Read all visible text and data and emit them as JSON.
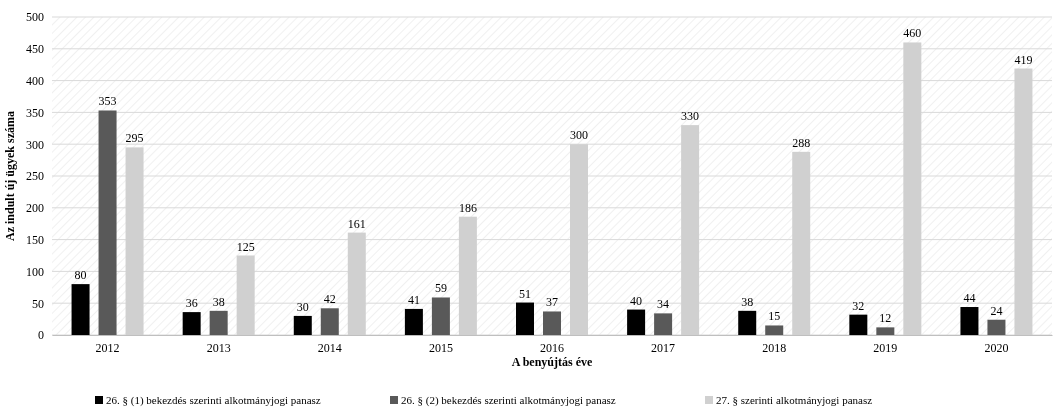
{
  "chart_data": {
    "type": "bar",
    "xlabel": "A benyújtás éve",
    "ylabel": "Az indult új ügyek száma",
    "categories": [
      "2012",
      "2013",
      "2014",
      "2015",
      "2016",
      "2017",
      "2018",
      "2019",
      "2020"
    ],
    "series": [
      {
        "name": "26. § (1) bekezdés szerinti alkotmányjogi panasz",
        "color": "#000000",
        "values": [
          80,
          36,
          30,
          41,
          51,
          40,
          38,
          32,
          44
        ]
      },
      {
        "name": "26. § (2) bekezdés szerinti alkotmányjogi panasz",
        "color": "#595959",
        "values": [
          353,
          38,
          42,
          59,
          37,
          34,
          15,
          12,
          24
        ]
      },
      {
        "name": "27. § szerinti alkotmányjogi panasz",
        "color": "#d0d0d0",
        "values": [
          295,
          125,
          161,
          186,
          300,
          330,
          288,
          460,
          419
        ]
      }
    ],
    "ylim": [
      0,
      500
    ],
    "yticks": [
      0,
      50,
      100,
      150,
      200,
      250,
      300,
      350,
      400,
      450,
      500
    ],
    "grid": "y",
    "data_labels": true,
    "legend": "bottom"
  }
}
